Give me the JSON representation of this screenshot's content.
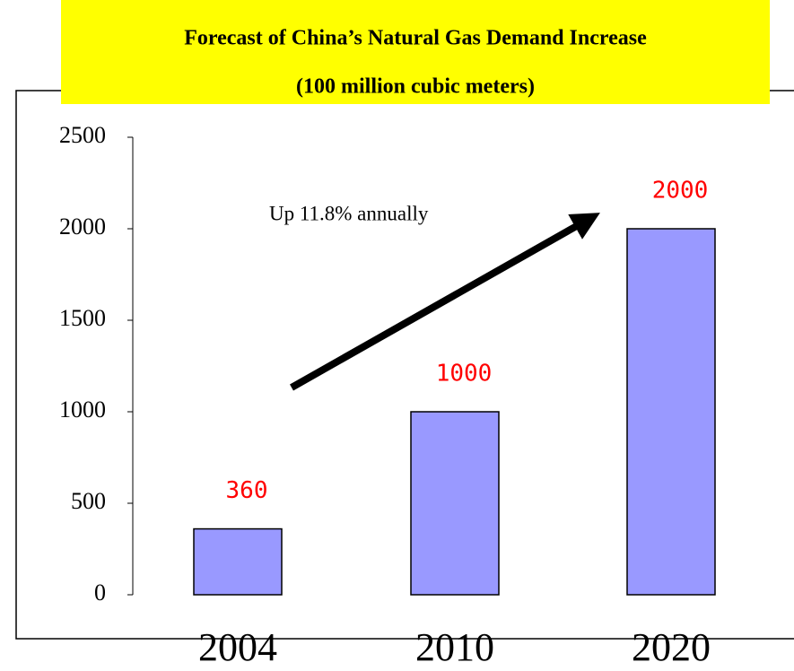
{
  "chart_data": {
    "type": "bar",
    "title": "Forecast of China’s Natural Gas Demand Increase",
    "subtitle": "(100 million cubic meters)",
    "annotation": "Up 11.8% annually",
    "categories": [
      "2004",
      "2010",
      "2020"
    ],
    "values": [
      360,
      1000,
      2000
    ],
    "color": "#9999ff",
    "value_label_color": "#ff0000",
    "title_background": "#ffff00",
    "ylim": [
      0,
      2500
    ],
    "yticks": [
      0,
      500,
      1000,
      1500,
      2000,
      2500
    ],
    "grid": false
  }
}
